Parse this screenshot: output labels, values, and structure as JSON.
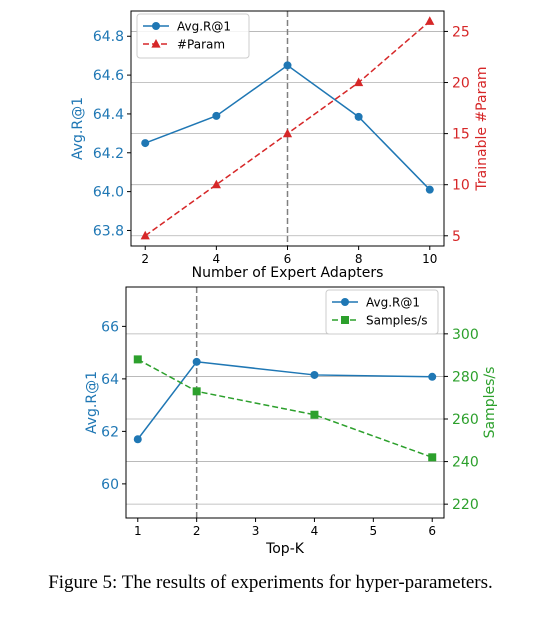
{
  "caption": "Figure 5: The results of experiments for hyper-parameters.",
  "colors": {
    "blue": "#1f77b4",
    "red": "#d62728",
    "green": "#2ca02c",
    "grid": "#b0b0b0",
    "vline": "#808080"
  },
  "chart_data": [
    {
      "type": "line",
      "xlabel": "Number of Expert Adapters",
      "ylabel": "Avg.R@1",
      "y2label": "Trainable #Param",
      "x": [
        2,
        4,
        6,
        8,
        10
      ],
      "xticks": [
        "2",
        "4",
        "6",
        "8",
        "10"
      ],
      "yticks": [
        "63.8",
        "64.0",
        "64.2",
        "64.4",
        "64.6",
        "64.8"
      ],
      "y2ticks": [
        "5",
        "10",
        "15",
        "20",
        "25"
      ],
      "xlim": [
        1.6,
        10.4
      ],
      "ylim": [
        63.72,
        64.93
      ],
      "y2lim": [
        4,
        27
      ],
      "grid": true,
      "legend_position": "top-left",
      "highlight_x": 6,
      "series": [
        {
          "name": "Avg.R@1",
          "axis": "left",
          "color": "#1f77b4",
          "marker": "circle",
          "linestyle": "solid",
          "values": [
            64.25,
            64.39,
            64.65,
            64.385,
            64.01
          ]
        },
        {
          "name": "#Param",
          "axis": "right",
          "color": "#d62728",
          "marker": "triangle",
          "linestyle": "dashed",
          "values": [
            5,
            10,
            15,
            20,
            26
          ]
        }
      ]
    },
    {
      "type": "line",
      "xlabel": "Top-K",
      "ylabel": "Avg.R@1",
      "y2label": "Samples/s",
      "x": [
        1,
        2,
        4,
        6
      ],
      "xticks": [
        "1",
        "2",
        "3",
        "4",
        "5",
        "6"
      ],
      "yticks": [
        "60",
        "62",
        "64",
        "66"
      ],
      "y2ticks": [
        "220",
        "240",
        "260",
        "280",
        "300"
      ],
      "xlim": [
        0.8,
        6.2
      ],
      "ylim": [
        58.7,
        67.5
      ],
      "y2lim": [
        213.5,
        322
      ],
      "grid": true,
      "legend_position": "top-right",
      "highlight_x": 2,
      "series": [
        {
          "name": "Avg.R@1",
          "axis": "left",
          "color": "#1f77b4",
          "marker": "circle",
          "linestyle": "solid",
          "values": [
            61.7,
            64.65,
            64.15,
            64.08
          ]
        },
        {
          "name": "Samples/s",
          "axis": "right",
          "color": "#2ca02c",
          "marker": "square",
          "linestyle": "dashed",
          "values": [
            288,
            273,
            262,
            242
          ]
        }
      ]
    }
  ]
}
